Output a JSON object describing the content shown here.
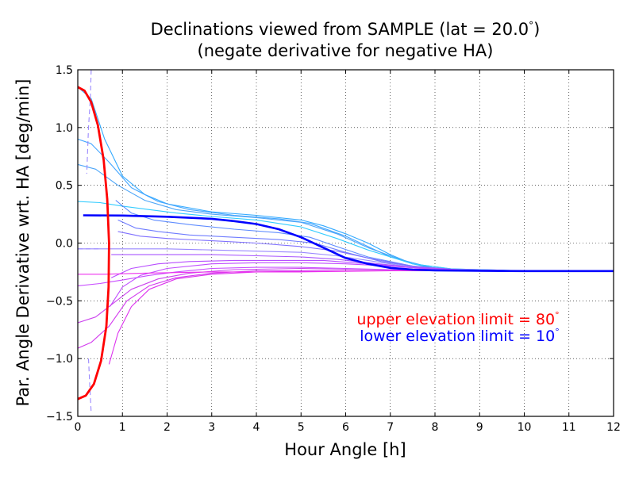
{
  "chart_data": {
    "type": "line",
    "title_line1": "Declinations viewed from SAMPLE (lat = 20.0",
    "title_line1_end": ")",
    "title_line2": "(negate derivative for negative HA)",
    "degree_symbol": "°",
    "xlabel": "Hour Angle [h]",
    "ylabel": "Par. Angle Derivative wrt. HA [deg/min]",
    "xlim": [
      0,
      12
    ],
    "ylim": [
      -1.5,
      1.5
    ],
    "grid": true,
    "x_ticks": [
      0,
      1,
      2,
      3,
      4,
      5,
      6,
      7,
      8,
      9,
      10,
      11,
      12
    ],
    "y_ticks": [
      -1.5,
      -1.0,
      -0.5,
      0.0,
      0.5,
      1.0,
      1.5
    ],
    "y_tick_labels": [
      "−1.5",
      "−1.0",
      "−0.5",
      "0.0",
      "0.5",
      "1.0",
      "1.5"
    ],
    "annotations": [
      {
        "text": "upper elevation limit = 80",
        "color": "#ff0000"
      },
      {
        "text": "lower elevation limit = 10",
        "color": "#0000ff"
      }
    ],
    "colors": {
      "upper_limit": "#ff0000",
      "lower_limit": "#0000ff",
      "frame": "#000000"
    },
    "declination_curves": [
      {
        "color": "#33aaff",
        "points": [
          [
            0.0,
            1.35
          ],
          [
            0.3,
            1.25
          ],
          [
            0.6,
            0.9
          ],
          [
            1.0,
            0.58
          ],
          [
            1.5,
            0.42
          ],
          [
            2,
            0.34
          ],
          [
            3,
            0.27
          ],
          [
            4,
            0.24
          ],
          [
            5,
            0.2
          ],
          [
            5.5,
            0.15
          ],
          [
            6,
            0.08
          ],
          [
            6.5,
            0.0
          ],
          [
            7,
            -0.1
          ],
          [
            7.5,
            -0.18
          ],
          [
            8,
            -0.22
          ],
          [
            10,
            -0.24
          ],
          [
            12,
            -0.24
          ]
        ]
      },
      {
        "color": "#44a6ff",
        "points": [
          [
            0.0,
            0.9
          ],
          [
            0.3,
            0.86
          ],
          [
            0.7,
            0.7
          ],
          [
            1.2,
            0.48
          ],
          [
            1.8,
            0.36
          ],
          [
            2.5,
            0.29
          ],
          [
            3.5,
            0.24
          ],
          [
            4.5,
            0.21
          ],
          [
            5.2,
            0.17
          ],
          [
            6,
            0.06
          ],
          [
            7,
            -0.12
          ],
          [
            8,
            -0.22
          ],
          [
            10,
            -0.24
          ],
          [
            12,
            -0.24
          ]
        ]
      },
      {
        "color": "#4ea6f8",
        "points": [
          [
            0.0,
            0.68
          ],
          [
            0.4,
            0.64
          ],
          [
            0.9,
            0.5
          ],
          [
            1.5,
            0.37
          ],
          [
            2.2,
            0.29
          ],
          [
            3,
            0.25
          ],
          [
            4,
            0.22
          ],
          [
            5,
            0.18
          ],
          [
            5.8,
            0.08
          ],
          [
            6.5,
            -0.04
          ],
          [
            7.5,
            -0.18
          ],
          [
            8.5,
            -0.23
          ],
          [
            10,
            -0.24
          ],
          [
            12,
            -0.24
          ]
        ]
      },
      {
        "color": "#33ccff",
        "points": [
          [
            0.0,
            0.36
          ],
          [
            0.5,
            0.35
          ],
          [
            1.0,
            0.32
          ],
          [
            1.6,
            0.29
          ],
          [
            2.2,
            0.26
          ],
          [
            3,
            0.23
          ],
          [
            4,
            0.2
          ],
          [
            5,
            0.14
          ],
          [
            5.8,
            0.04
          ],
          [
            6.5,
            -0.06
          ],
          [
            7.5,
            -0.18
          ],
          [
            8.5,
            -0.23
          ],
          [
            10,
            -0.24
          ],
          [
            12,
            -0.24
          ]
        ]
      },
      {
        "color": "#5f8cff",
        "points": [
          [
            0.85,
            0.37
          ],
          [
            1.2,
            0.26
          ],
          [
            1.7,
            0.2
          ],
          [
            2.5,
            0.16
          ],
          [
            3.5,
            0.12
          ],
          [
            4.5,
            0.09
          ],
          [
            5.2,
            0.05
          ],
          [
            5.8,
            -0.03
          ],
          [
            6.5,
            -0.12
          ],
          [
            7.5,
            -0.2
          ],
          [
            8.5,
            -0.23
          ],
          [
            10,
            -0.24
          ],
          [
            12,
            -0.24
          ]
        ]
      },
      {
        "color": "#6f7cff",
        "points": [
          [
            0.9,
            0.2
          ],
          [
            1.3,
            0.13
          ],
          [
            1.8,
            0.1
          ],
          [
            2.5,
            0.07
          ],
          [
            3.5,
            0.05
          ],
          [
            4.5,
            0.03
          ],
          [
            5.3,
            0.0
          ],
          [
            6,
            -0.08
          ],
          [
            6.8,
            -0.16
          ],
          [
            7.8,
            -0.22
          ],
          [
            9,
            -0.24
          ],
          [
            12,
            -0.24
          ]
        ]
      },
      {
        "color": "#7f70ff",
        "points": [
          [
            0.9,
            0.1
          ],
          [
            1.4,
            0.06
          ],
          [
            2,
            0.04
          ],
          [
            3,
            0.02
          ],
          [
            4,
            0.0
          ],
          [
            5,
            -0.03
          ],
          [
            5.8,
            -0.07
          ],
          [
            6.5,
            -0.13
          ],
          [
            7.5,
            -0.2
          ],
          [
            8.5,
            -0.23
          ],
          [
            10,
            -0.24
          ],
          [
            12,
            -0.24
          ]
        ]
      },
      {
        "color": "#9a88ff",
        "points": [
          [
            0.0,
            -0.05
          ],
          [
            0.4,
            -0.05
          ],
          [
            1.0,
            -0.05
          ],
          [
            2,
            -0.05
          ],
          [
            3,
            -0.06
          ],
          [
            4,
            -0.07
          ],
          [
            5,
            -0.08
          ],
          [
            5.8,
            -0.11
          ],
          [
            6.5,
            -0.15
          ],
          [
            7.5,
            -0.21
          ],
          [
            8.5,
            -0.23
          ],
          [
            10,
            -0.24
          ],
          [
            12,
            -0.24
          ]
        ]
      },
      {
        "color": "#a855ff",
        "points": [
          [
            0.75,
            -0.1
          ],
          [
            1.2,
            -0.1
          ],
          [
            2,
            -0.1
          ],
          [
            3,
            -0.1
          ],
          [
            4,
            -0.11
          ],
          [
            5,
            -0.12
          ],
          [
            5.8,
            -0.14
          ],
          [
            6.5,
            -0.17
          ],
          [
            7.5,
            -0.21
          ],
          [
            8.5,
            -0.23
          ],
          [
            10,
            -0.24
          ],
          [
            12,
            -0.24
          ]
        ]
      },
      {
        "color": "#b84eff",
        "points": [
          [
            0.75,
            -0.3
          ],
          [
            1.2,
            -0.22
          ],
          [
            1.8,
            -0.18
          ],
          [
            2.5,
            -0.16
          ],
          [
            3.5,
            -0.15
          ],
          [
            4.5,
            -0.15
          ],
          [
            5.5,
            -0.15
          ],
          [
            6.5,
            -0.18
          ],
          [
            7.5,
            -0.21
          ],
          [
            8.5,
            -0.23
          ],
          [
            10,
            -0.24
          ],
          [
            12,
            -0.24
          ]
        ]
      },
      {
        "color": "#c04cff",
        "points": [
          [
            0.72,
            -0.55
          ],
          [
            1.0,
            -0.38
          ],
          [
            1.4,
            -0.28
          ],
          [
            2,
            -0.22
          ],
          [
            3,
            -0.18
          ],
          [
            4,
            -0.17
          ],
          [
            5,
            -0.17
          ],
          [
            6,
            -0.18
          ],
          [
            7,
            -0.2
          ],
          [
            8,
            -0.23
          ],
          [
            10,
            -0.24
          ],
          [
            12,
            -0.24
          ]
        ]
      },
      {
        "color": "#c84cff",
        "points": [
          [
            0.0,
            -0.37
          ],
          [
            0.5,
            -0.35
          ],
          [
            1.0,
            -0.32
          ],
          [
            1.6,
            -0.28
          ],
          [
            2.2,
            -0.25
          ],
          [
            3,
            -0.22
          ],
          [
            4,
            -0.21
          ],
          [
            5,
            -0.21
          ],
          [
            6,
            -0.22
          ],
          [
            7,
            -0.23
          ],
          [
            8,
            -0.24
          ],
          [
            12,
            -0.24
          ]
        ]
      },
      {
        "color": "#cc44ee",
        "points": [
          [
            0.0,
            -0.69
          ],
          [
            0.4,
            -0.64
          ],
          [
            0.8,
            -0.52
          ],
          [
            1.2,
            -0.4
          ],
          [
            1.8,
            -0.31
          ],
          [
            2.5,
            -0.26
          ],
          [
            3.5,
            -0.23
          ],
          [
            5,
            -0.22
          ],
          [
            6.5,
            -0.23
          ],
          [
            8,
            -0.24
          ],
          [
            12,
            -0.24
          ]
        ]
      },
      {
        "color": "#d238ee",
        "points": [
          [
            0.0,
            -0.91
          ],
          [
            0.3,
            -0.86
          ],
          [
            0.7,
            -0.72
          ],
          [
            1.1,
            -0.5
          ],
          [
            1.6,
            -0.37
          ],
          [
            2.2,
            -0.3
          ],
          [
            3,
            -0.26
          ],
          [
            4,
            -0.24
          ],
          [
            6,
            -0.24
          ],
          [
            8,
            -0.24
          ],
          [
            12,
            -0.24
          ]
        ]
      },
      {
        "color": "#dd33ee",
        "points": [
          [
            0.7,
            -1.05
          ],
          [
            0.9,
            -0.78
          ],
          [
            1.2,
            -0.55
          ],
          [
            1.6,
            -0.4
          ],
          [
            2.2,
            -0.31
          ],
          [
            3,
            -0.27
          ],
          [
            4,
            -0.25
          ],
          [
            6,
            -0.24
          ],
          [
            8,
            -0.24
          ],
          [
            12,
            -0.24
          ]
        ]
      },
      {
        "color": "#ee33ee",
        "points": [
          [
            0.0,
            -0.27
          ],
          [
            0.6,
            -0.27
          ],
          [
            1.5,
            -0.26
          ],
          [
            3,
            -0.25
          ],
          [
            5,
            -0.25
          ],
          [
            7,
            -0.24
          ],
          [
            9,
            -0.24
          ],
          [
            12,
            -0.24
          ]
        ]
      }
    ],
    "dashed_curves": [
      {
        "color": "#9a88ff",
        "points": [
          [
            0.3,
            1.5
          ],
          [
            0.28,
            1.25
          ],
          [
            0.24,
            1.0
          ],
          [
            0.2,
            0.6
          ]
        ]
      },
      {
        "color": "#9a88ff",
        "points": [
          [
            0.24,
            -1.0
          ],
          [
            0.27,
            -1.25
          ],
          [
            0.3,
            -1.47
          ]
        ]
      },
      {
        "color": "#9a88ff",
        "points": [
          [
            0.0,
            -0.05
          ],
          [
            0.5,
            -0.05
          ]
        ]
      }
    ],
    "upper_limit_curve": {
      "points": [
        [
          0.0,
          1.35
        ],
        [
          0.15,
          1.32
        ],
        [
          0.3,
          1.22
        ],
        [
          0.45,
          1.02
        ],
        [
          0.58,
          0.72
        ],
        [
          0.66,
          0.38
        ],
        [
          0.7,
          0.0
        ],
        [
          0.69,
          -0.38
        ],
        [
          0.64,
          -0.72
        ],
        [
          0.52,
          -1.02
        ],
        [
          0.36,
          -1.22
        ],
        [
          0.18,
          -1.32
        ],
        [
          0.0,
          -1.35
        ]
      ]
    },
    "lower_limit_curve": {
      "points": [
        [
          0.12,
          0.24
        ],
        [
          1.0,
          0.238
        ],
        [
          2,
          0.228
        ],
        [
          3,
          0.21
        ],
        [
          3.5,
          0.19
        ],
        [
          4,
          0.165
        ],
        [
          4.5,
          0.12
        ],
        [
          5,
          0.05
        ],
        [
          5.5,
          -0.04
        ],
        [
          6,
          -0.13
        ],
        [
          6.5,
          -0.18
        ],
        [
          7,
          -0.215
        ],
        [
          7.5,
          -0.23
        ],
        [
          8,
          -0.236
        ],
        [
          9,
          -0.24
        ],
        [
          10,
          -0.242
        ],
        [
          12,
          -0.242
        ]
      ]
    }
  }
}
